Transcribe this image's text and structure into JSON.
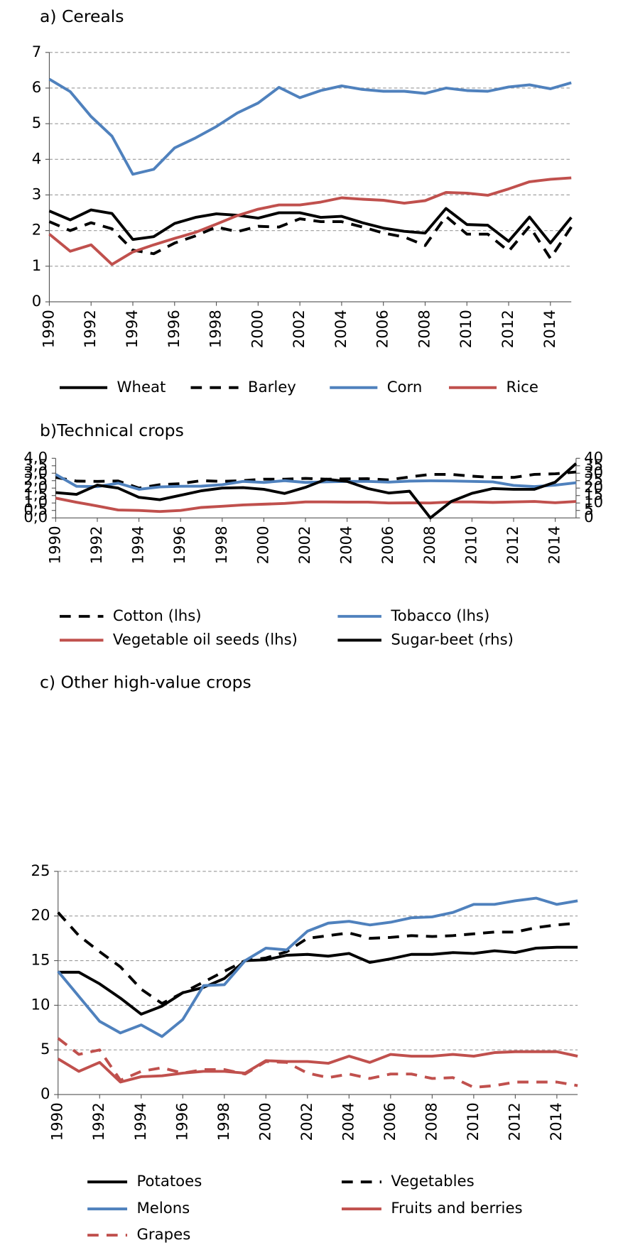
{
  "chart_data": [
    {
      "type": "line",
      "title": "a) Cereals",
      "x": [
        1990,
        1991,
        1992,
        1993,
        1994,
        1995,
        1996,
        1997,
        1998,
        1999,
        2000,
        2001,
        2002,
        2003,
        2004,
        2005,
        2006,
        2007,
        2008,
        2009,
        2010,
        2011,
        2012,
        2013,
        2014,
        2015
      ],
      "xlim": [
        1990,
        2015
      ],
      "xticks": [
        1990,
        1992,
        1994,
        1996,
        1998,
        2000,
        2002,
        2004,
        2006,
        2008,
        2010,
        2012,
        2014
      ],
      "ylim": [
        0,
        7
      ],
      "yticks": [
        0,
        1,
        2,
        3,
        4,
        5,
        6,
        7
      ],
      "grid": true,
      "series": [
        {
          "name": "Wheat",
          "color": "#000000",
          "style": "solid",
          "values": [
            2.55,
            2.3,
            2.58,
            2.48,
            1.75,
            1.83,
            2.2,
            2.37,
            2.47,
            2.43,
            2.35,
            2.5,
            2.5,
            2.37,
            2.4,
            2.22,
            2.07,
            1.98,
            1.93,
            2.62,
            2.17,
            2.15,
            1.7,
            2.38,
            1.65,
            2.37
          ]
        },
        {
          "name": "Barley",
          "color": "#000000",
          "style": "dashed",
          "values": [
            2.25,
            2.0,
            2.22,
            2.05,
            1.45,
            1.35,
            1.65,
            1.85,
            2.1,
            1.97,
            2.12,
            2.1,
            2.33,
            2.25,
            2.25,
            2.1,
            1.93,
            1.82,
            1.58,
            2.4,
            1.9,
            1.9,
            1.42,
            2.12,
            1.22,
            2.1
          ]
        },
        {
          "name": "Corn",
          "color": "#4f81bd",
          "style": "solid",
          "values": [
            6.25,
            5.9,
            5.2,
            4.65,
            3.58,
            3.72,
            4.32,
            4.6,
            4.92,
            5.3,
            5.58,
            6.02,
            5.73,
            5.93,
            6.06,
            5.96,
            5.91,
            5.91,
            5.85,
            6.0,
            5.93,
            5.91,
            6.03,
            6.09,
            5.98,
            6.15
          ]
        },
        {
          "name": "Rice",
          "color": "#c0504d",
          "style": "solid",
          "values": [
            1.9,
            1.42,
            1.6,
            1.05,
            1.4,
            1.6,
            1.78,
            1.95,
            2.18,
            2.42,
            2.6,
            2.72,
            2.72,
            2.8,
            2.92,
            2.88,
            2.85,
            2.77,
            2.84,
            3.07,
            3.05,
            2.99,
            3.17,
            3.37,
            3.44,
            3.48
          ]
        }
      ]
    },
    {
      "type": "line",
      "title": "b)Technical crops",
      "x": [
        1990,
        1991,
        1992,
        1993,
        1994,
        1995,
        1996,
        1997,
        1998,
        1999,
        2000,
        2001,
        2002,
        2003,
        2004,
        2005,
        2006,
        2007,
        2008,
        2009,
        2010,
        2011,
        2012,
        2013,
        2014,
        2015
      ],
      "xlim": [
        1990,
        2015
      ],
      "xticks": [
        1990,
        1992,
        1994,
        1996,
        1998,
        2000,
        2002,
        2004,
        2006,
        2008,
        2010,
        2012,
        2014
      ],
      "ylim": [
        0,
        4
      ],
      "yticks": [
        {
          "value": 0,
          "label": "0,0"
        },
        {
          "value": 0.5,
          "label": "0,5"
        },
        {
          "value": 1,
          "label": "1,0"
        },
        {
          "value": 1.5,
          "label": "1,5"
        },
        {
          "value": 2,
          "label": "2,0"
        },
        {
          "value": 2.5,
          "label": "2,5"
        },
        {
          "value": 3,
          "label": "3,0"
        },
        {
          "value": 3.5,
          "label": "3,5"
        },
        {
          "value": 4,
          "label": "4,0"
        }
      ],
      "y2lim": [
        0,
        40
      ],
      "y2ticks": [
        0,
        5,
        10,
        15,
        20,
        25,
        30,
        35,
        40
      ],
      "grid": false,
      "series": [
        {
          "name": "Cotton (lhs)",
          "color": "#000000",
          "style": "dashed",
          "values": [
            2.72,
            2.47,
            2.45,
            2.48,
            2.0,
            2.23,
            2.3,
            2.5,
            2.45,
            2.5,
            2.6,
            2.6,
            2.65,
            2.6,
            2.62,
            2.63,
            2.55,
            2.75,
            2.92,
            2.92,
            2.8,
            2.72,
            2.72,
            2.92,
            2.96,
            3.08
          ]
        },
        {
          "name": "Tobacco (lhs)",
          "color": "#4f81bd",
          "style": "solid",
          "values": [
            2.92,
            2.12,
            2.1,
            2.33,
            1.92,
            2.08,
            2.12,
            2.13,
            2.23,
            2.45,
            2.38,
            2.5,
            2.38,
            2.42,
            2.45,
            2.45,
            2.4,
            2.47,
            2.49,
            2.48,
            2.45,
            2.42,
            2.18,
            2.1,
            2.2,
            2.36
          ]
        },
        {
          "name": "Vegetable oil seeds (lhs)",
          "color": "#c0504d",
          "style": "solid",
          "values": [
            1.33,
            1.05,
            0.8,
            0.53,
            0.5,
            0.43,
            0.5,
            0.7,
            0.78,
            0.87,
            0.92,
            0.97,
            1.07,
            1.07,
            1.06,
            1.06,
            1.0,
            1.01,
            1.0,
            1.07,
            1.07,
            1.04,
            1.07,
            1.1,
            1.02,
            1.1
          ]
        },
        {
          "name": "Sugar-beet (rhs)",
          "color": "#000000",
          "style": "solid",
          "axis": "y2",
          "values": [
            17,
            15.8,
            22,
            20,
            13.8,
            12.2,
            15.2,
            18.2,
            20,
            20.3,
            19.2,
            16.4,
            20.5,
            26,
            24.5,
            19.7,
            16.7,
            17.9,
            0,
            11,
            16.5,
            19.7,
            19.2,
            19.2,
            24,
            36.5
          ]
        }
      ]
    },
    {
      "type": "line",
      "title": "c) Other high-value crops",
      "x": [
        1990,
        1991,
        1992,
        1993,
        1994,
        1995,
        1996,
        1997,
        1998,
        1999,
        2000,
        2001,
        2002,
        2003,
        2004,
        2005,
        2006,
        2007,
        2008,
        2009,
        2010,
        2011,
        2012,
        2013,
        2014,
        2015
      ],
      "xlim": [
        1990,
        2015
      ],
      "xticks": [
        1990,
        1992,
        1994,
        1996,
        1998,
        2000,
        2002,
        2004,
        2006,
        2008,
        2010,
        2012,
        2014
      ],
      "ylim": [
        0,
        25
      ],
      "yticks": [
        0,
        5,
        10,
        15,
        20,
        25
      ],
      "grid": true,
      "series": [
        {
          "name": "Potatoes",
          "color": "#000000",
          "style": "solid",
          "values": [
            13.7,
            13.7,
            12.4,
            10.8,
            9.0,
            9.9,
            11.4,
            12.0,
            13.0,
            15.0,
            15.1,
            15.6,
            15.7,
            15.5,
            15.8,
            14.8,
            15.2,
            15.7,
            15.7,
            15.9,
            15.8,
            16.1,
            15.9,
            16.4,
            16.5,
            16.5
          ]
        },
        {
          "name": "Vegetables",
          "color": "#000000",
          "style": "dashed",
          "values": [
            20.4,
            17.8,
            16.0,
            14.3,
            11.8,
            10.2,
            11.4,
            12.6,
            13.8,
            15.0,
            15.3,
            16.0,
            17.5,
            17.8,
            18.1,
            17.5,
            17.6,
            17.8,
            17.7,
            17.8,
            18.0,
            18.2,
            18.2,
            18.7,
            19.0,
            19.2
          ]
        },
        {
          "name": "Melons",
          "color": "#4f81bd",
          "style": "solid",
          "values": [
            13.8,
            11.0,
            8.2,
            6.9,
            7.8,
            6.5,
            8.4,
            12.2,
            12.3,
            15.0,
            16.4,
            16.2,
            18.3,
            19.2,
            19.4,
            19.0,
            19.3,
            19.8,
            19.9,
            20.4,
            21.3,
            21.3,
            21.7,
            22.0,
            21.3,
            21.7
          ]
        },
        {
          "name": "Fruits and berries",
          "color": "#c0504d",
          "style": "solid",
          "values": [
            4.0,
            2.6,
            3.6,
            1.4,
            2.0,
            2.1,
            2.4,
            2.6,
            2.6,
            2.4,
            3.8,
            3.7,
            3.7,
            3.5,
            4.3,
            3.6,
            4.5,
            4.3,
            4.3,
            4.5,
            4.3,
            4.7,
            4.8,
            4.8,
            4.8,
            4.3
          ]
        },
        {
          "name": "Grapes",
          "color": "#c0504d",
          "style": "dashed",
          "values": [
            6.3,
            4.5,
            5.0,
            1.6,
            2.6,
            3.0,
            2.4,
            2.8,
            2.8,
            2.3,
            3.7,
            3.6,
            2.4,
            1.9,
            2.3,
            1.8,
            2.3,
            2.3,
            1.8,
            1.9,
            0.8,
            1.0,
            1.4,
            1.4,
            1.4,
            1.0
          ]
        }
      ]
    }
  ]
}
